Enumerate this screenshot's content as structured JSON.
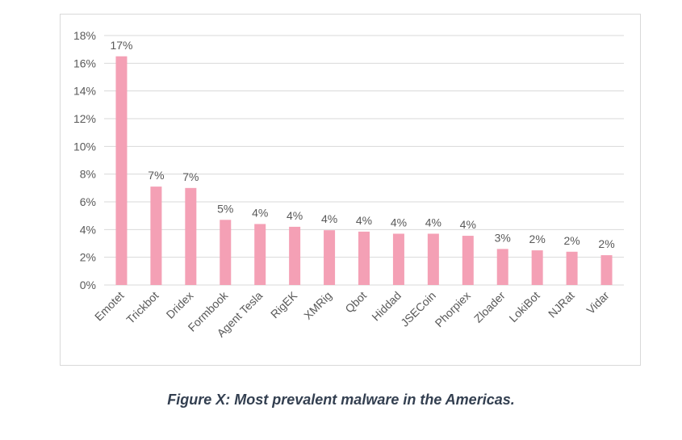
{
  "caption": "Figure X: Most prevalent malware in the Americas.",
  "colors": {
    "bar": "#f4a0b5",
    "grid": "#d9d9d9",
    "text": "#595959",
    "caption": "#333f50"
  },
  "chart_data": {
    "type": "bar",
    "title": "",
    "xlabel": "",
    "ylabel": "",
    "ylim": [
      0,
      18
    ],
    "grid": true,
    "legend": "none",
    "y_ticks": [
      "0%",
      "2%",
      "4%",
      "6%",
      "8%",
      "10%",
      "12%",
      "14%",
      "16%",
      "18%"
    ],
    "categories": [
      "Emotet",
      "Trickbot",
      "Dridex",
      "Formbook",
      "Agent Tesla",
      "RigEK",
      "XMRig",
      "Qbot",
      "Hiddad",
      "JSECoin",
      "Phorpiex",
      "Zloader",
      "LokiBot",
      "NJRat",
      "Vidar"
    ],
    "values": [
      16.5,
      7.1,
      7.0,
      4.7,
      4.4,
      4.2,
      3.95,
      3.85,
      3.7,
      3.7,
      3.55,
      2.6,
      2.5,
      2.4,
      2.15
    ],
    "data_labels": [
      "17%",
      "7%",
      "7%",
      "5%",
      "4%",
      "4%",
      "4%",
      "4%",
      "4%",
      "4%",
      "4%",
      "3%",
      "2%",
      "2%",
      "2%"
    ]
  }
}
